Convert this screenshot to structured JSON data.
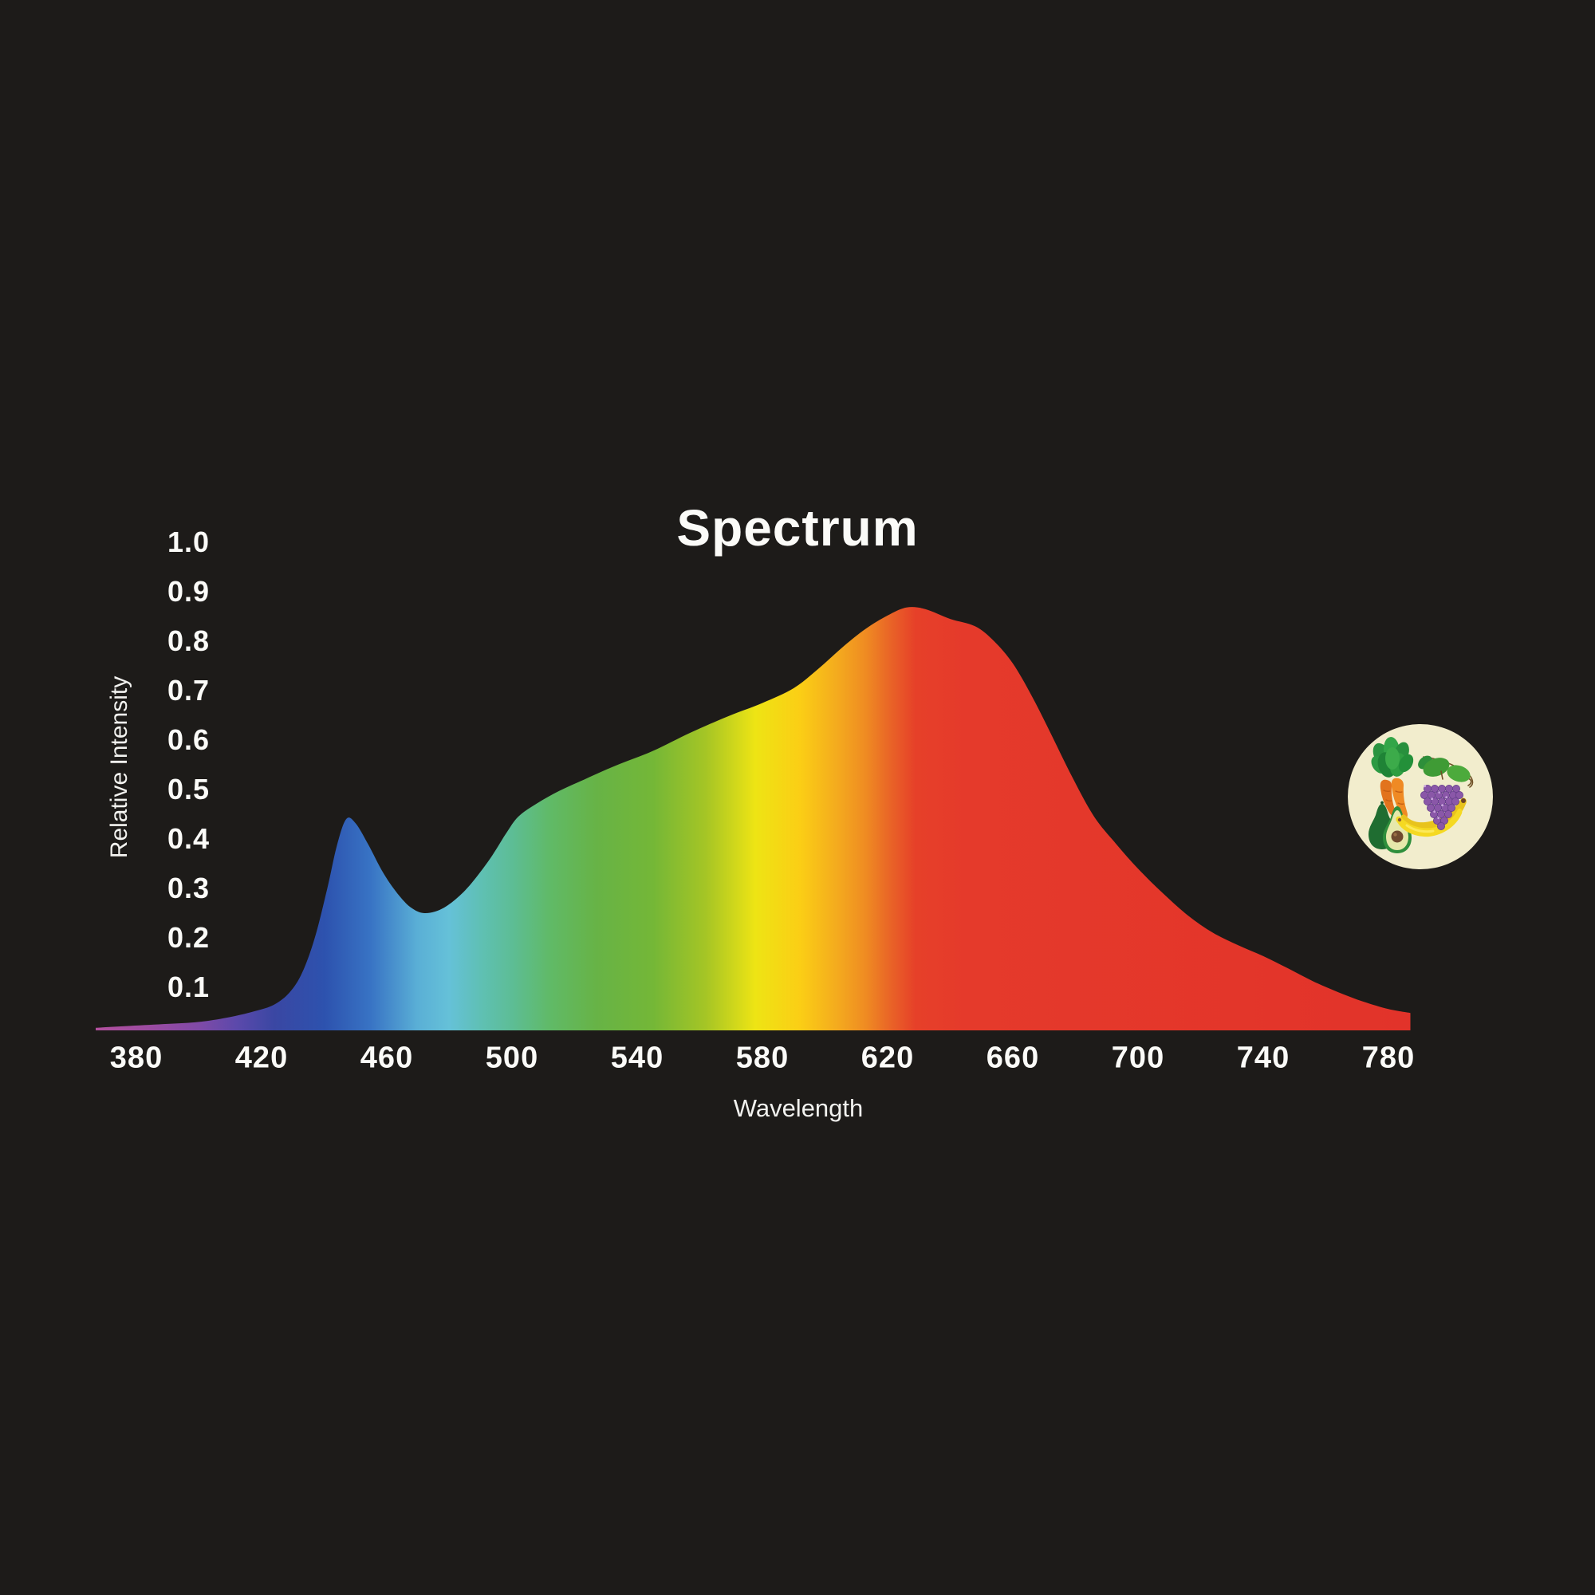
{
  "page": {
    "background_color": "#1d1b19",
    "text_color": "#fbfbf8"
  },
  "chart_data": {
    "type": "area",
    "title": "Spectrum",
    "xlabel": "Wavelength",
    "ylabel": "Relative Intensity",
    "x_ticks": [
      "380",
      "420",
      "460",
      "500",
      "540",
      "580",
      "620",
      "660",
      "700",
      "740",
      "780"
    ],
    "y_ticks": [
      "1.0",
      "0.9",
      "0.8",
      "0.7",
      "0.6",
      "0.5",
      "0.4",
      "0.3",
      "0.2",
      "0.1"
    ],
    "xlim": [
      367,
      787
    ],
    "ylim": [
      0,
      1.0
    ],
    "grid": false,
    "legend": false,
    "series": [
      {
        "name": "Relative Intensity",
        "points": [
          [
            367,
            0.018
          ],
          [
            378,
            0.022
          ],
          [
            390,
            0.026
          ],
          [
            400,
            0.03
          ],
          [
            410,
            0.04
          ],
          [
            418,
            0.052
          ],
          [
            424,
            0.065
          ],
          [
            429,
            0.09
          ],
          [
            433,
            0.13
          ],
          [
            437,
            0.2
          ],
          [
            441,
            0.3
          ],
          [
            444,
            0.385
          ],
          [
            447,
            0.44
          ],
          [
            450,
            0.432
          ],
          [
            454,
            0.39
          ],
          [
            459,
            0.33
          ],
          [
            464,
            0.285
          ],
          [
            468,
            0.26
          ],
          [
            472,
            0.25
          ],
          [
            477,
            0.257
          ],
          [
            482,
            0.278
          ],
          [
            487,
            0.31
          ],
          [
            493,
            0.36
          ],
          [
            498,
            0.41
          ],
          [
            502,
            0.445
          ],
          [
            508,
            0.472
          ],
          [
            515,
            0.497
          ],
          [
            523,
            0.52
          ],
          [
            533,
            0.548
          ],
          [
            545,
            0.578
          ],
          [
            557,
            0.615
          ],
          [
            569,
            0.648
          ],
          [
            580,
            0.675
          ],
          [
            590,
            0.705
          ],
          [
            598,
            0.745
          ],
          [
            606,
            0.79
          ],
          [
            613,
            0.825
          ],
          [
            620,
            0.852
          ],
          [
            626,
            0.868
          ],
          [
            632,
            0.865
          ],
          [
            640,
            0.845
          ],
          [
            648,
            0.83
          ],
          [
            654,
            0.8
          ],
          [
            660,
            0.755
          ],
          [
            666,
            0.69
          ],
          [
            672,
            0.615
          ],
          [
            679,
            0.525
          ],
          [
            686,
            0.445
          ],
          [
            693,
            0.39
          ],
          [
            700,
            0.34
          ],
          [
            708,
            0.29
          ],
          [
            716,
            0.245
          ],
          [
            724,
            0.21
          ],
          [
            732,
            0.185
          ],
          [
            740,
            0.163
          ],
          [
            748,
            0.138
          ],
          [
            756,
            0.112
          ],
          [
            764,
            0.09
          ],
          [
            772,
            0.071
          ],
          [
            780,
            0.056
          ],
          [
            787,
            0.048
          ]
        ]
      }
    ],
    "gradient_stops": [
      {
        "offset": 0.0,
        "color": "#b3509e"
      },
      {
        "offset": 0.043,
        "color": "#9a4ba1"
      },
      {
        "offset": 0.079,
        "color": "#7f4aa7"
      },
      {
        "offset": 0.107,
        "color": "#5c49ab"
      },
      {
        "offset": 0.136,
        "color": "#3a47a3"
      },
      {
        "offset": 0.174,
        "color": "#2d52ae"
      },
      {
        "offset": 0.209,
        "color": "#3873c4"
      },
      {
        "offset": 0.245,
        "color": "#5aafd6"
      },
      {
        "offset": 0.269,
        "color": "#65c1d8"
      },
      {
        "offset": 0.293,
        "color": "#5fc0b4"
      },
      {
        "offset": 0.317,
        "color": "#5dbd95"
      },
      {
        "offset": 0.345,
        "color": "#60ba68"
      },
      {
        "offset": 0.381,
        "color": "#67b346"
      },
      {
        "offset": 0.424,
        "color": "#74b737"
      },
      {
        "offset": 0.464,
        "color": "#a5c525"
      },
      {
        "offset": 0.502,
        "color": "#eee414"
      },
      {
        "offset": 0.536,
        "color": "#fbce15"
      },
      {
        "offset": 0.564,
        "color": "#f4ab1e"
      },
      {
        "offset": 0.586,
        "color": "#ef8b22"
      },
      {
        "offset": 0.605,
        "color": "#e96327"
      },
      {
        "offset": 0.624,
        "color": "#e64029"
      },
      {
        "offset": 0.662,
        "color": "#e53a2b"
      },
      {
        "offset": 1.0,
        "color": "#e2332a"
      }
    ]
  },
  "badge": {
    "background_color": "#f2edcd",
    "items": [
      "carrots",
      "grapes",
      "avocado",
      "bananas"
    ]
  }
}
